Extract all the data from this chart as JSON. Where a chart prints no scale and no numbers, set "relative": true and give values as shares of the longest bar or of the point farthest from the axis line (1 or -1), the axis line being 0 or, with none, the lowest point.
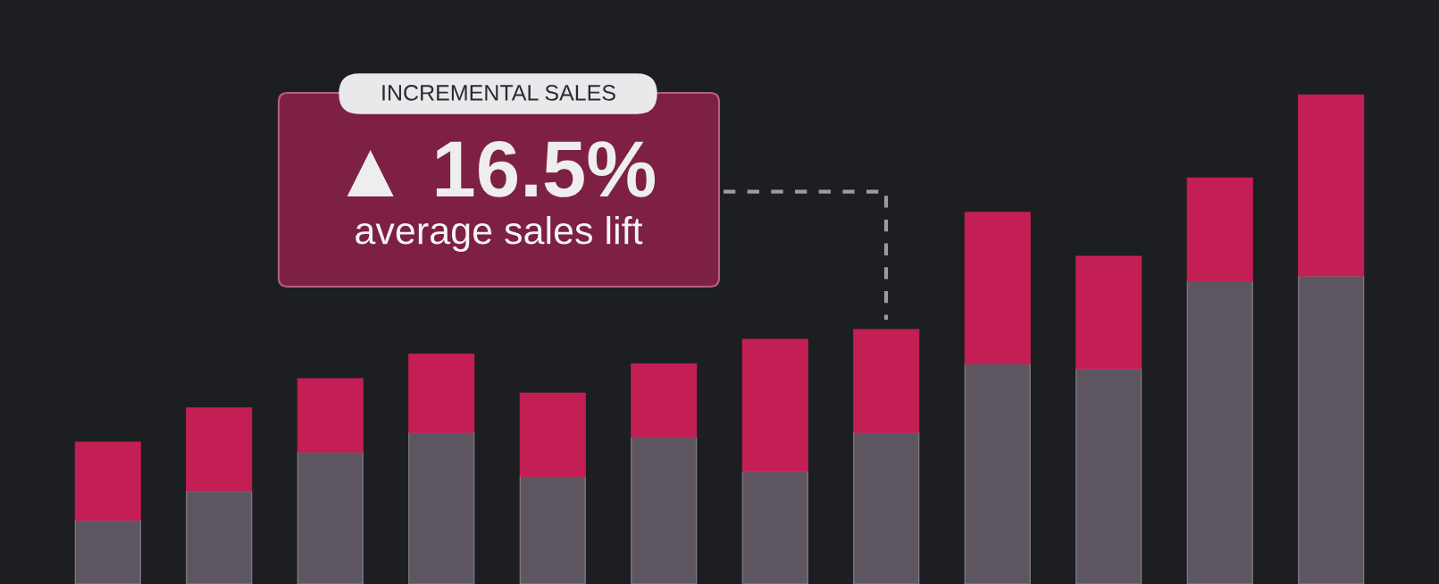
{
  "chart_data": {
    "type": "bar",
    "stacked": true,
    "relative": true,
    "categories": [
      null,
      null,
      null,
      null,
      null,
      null,
      null,
      null,
      null,
      null,
      null,
      null
    ],
    "series": [
      {
        "color": "#5d5660",
        "values": [
          0.13,
          0.19,
          0.27,
          0.31,
          0.22,
          0.3,
          0.23,
          0.31,
          0.45,
          0.44,
          0.62,
          0.63
        ]
      },
      {
        "color": "#c41f55",
        "values": [
          0.16,
          0.17,
          0.15,
          0.16,
          0.17,
          0.15,
          0.27,
          0.21,
          0.31,
          0.23,
          0.21,
          0.37
        ]
      }
    ],
    "annotations": [
      "INCREMENTAL SALES",
      "▲ 16.5%",
      "average sales lift"
    ]
  }
}
